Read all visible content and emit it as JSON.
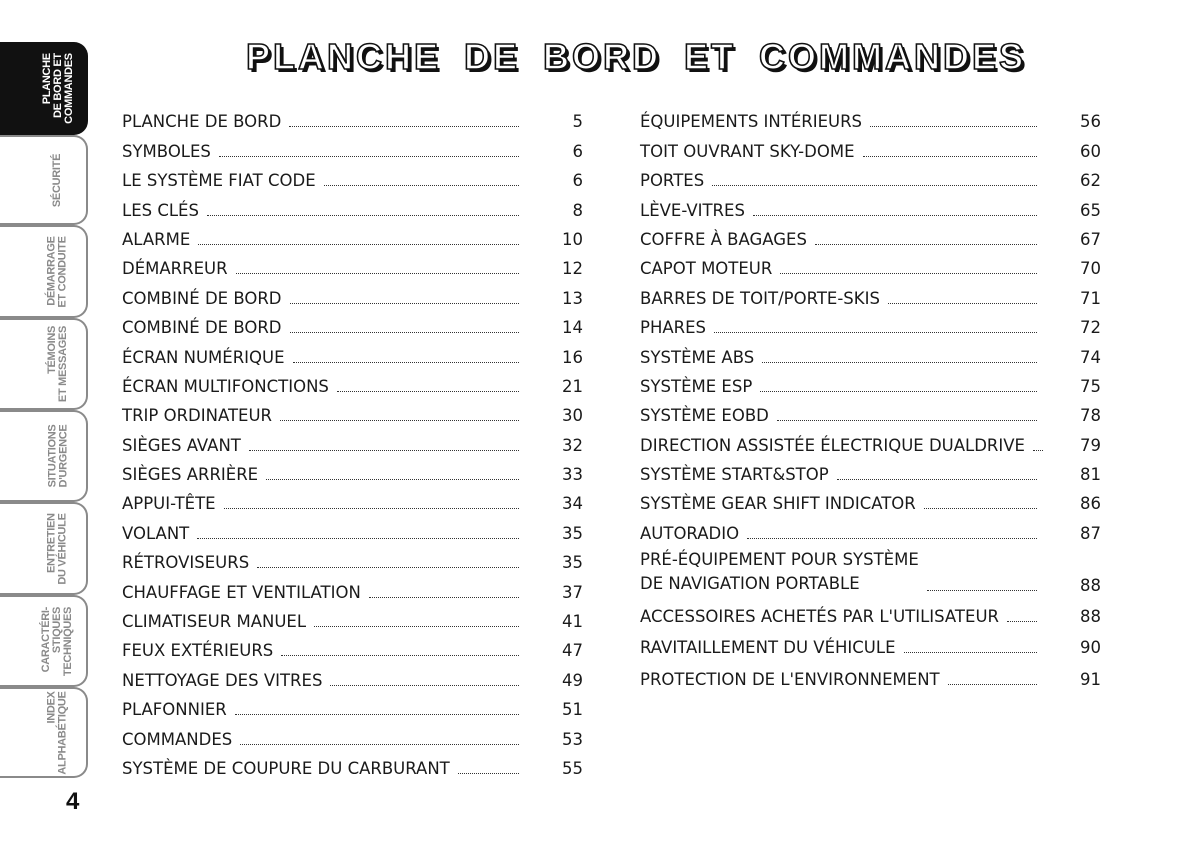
{
  "title": "PLANCHE DE BORD ET COMMANDES",
  "page_number": "4",
  "tabs": [
    {
      "label": "PLANCHE\nDE BORD ET\nCOMMANDES",
      "active": true
    },
    {
      "label": "SÉCURITÉ",
      "active": false
    },
    {
      "label": "DÉMARRAGE\nET CONDUITE",
      "active": false
    },
    {
      "label": "TÉMOINS\nET MESSAGES",
      "active": false
    },
    {
      "label": "SITUATIONS\nD'URGENCE",
      "active": false
    },
    {
      "label": "ENTRETIEN\nDU VÉHICULE",
      "active": false
    },
    {
      "label": "CARACTÉRI-\nSTIQUES\nTECHNIQUES",
      "active": false
    },
    {
      "label": "INDEX\nALPHABÉTIQUE",
      "active": false
    }
  ],
  "toc_left": [
    {
      "label": "PLANCHE DE BORD",
      "page": "5"
    },
    {
      "label": "SYMBOLES",
      "page": "6"
    },
    {
      "label": "LE SYSTÈME FIAT CODE",
      "page": "6"
    },
    {
      "label": "LES CLÉS",
      "page": "8"
    },
    {
      "label": "ALARME",
      "page": "10"
    },
    {
      "label": "DÉMARREUR",
      "page": "12"
    },
    {
      "label": "COMBINÉ DE BORD",
      "page": "13"
    },
    {
      "label": "COMBINÉ DE BORD",
      "page": "14"
    },
    {
      "label": "ÉCRAN NUMÉRIQUE",
      "page": "16"
    },
    {
      "label": "ÉCRAN MULTIFONCTIONS",
      "page": "21"
    },
    {
      "label": "TRIP ORDINATEUR",
      "page": "30"
    },
    {
      "label": "SIÈGES AVANT",
      "page": "32"
    },
    {
      "label": "SIÈGES ARRIÈRE",
      "page": "33"
    },
    {
      "label": "APPUI-TÊTE",
      "page": "34"
    },
    {
      "label": "VOLANT",
      "page": "35"
    },
    {
      "label": "RÉTROVISEURS",
      "page": "35"
    },
    {
      "label": "CHAUFFAGE ET VENTILATION",
      "page": "37"
    },
    {
      "label": "CLIMATISEUR MANUEL",
      "page": "41"
    },
    {
      "label": "FEUX EXTÉRIEURS",
      "page": "47"
    },
    {
      "label": "NETTOYAGE DES VITRES",
      "page": "49"
    },
    {
      "label": "PLAFONNIER",
      "page": "51"
    },
    {
      "label": "COMMANDES",
      "page": "53"
    },
    {
      "label": "SYSTÈME DE COUPURE DU CARBURANT",
      "page": "55"
    }
  ],
  "toc_right": [
    {
      "label": "ÉQUIPEMENTS INTÉRIEURS",
      "page": "56"
    },
    {
      "label": "TOIT OUVRANT SKY-DOME",
      "page": "60"
    },
    {
      "label": "PORTES",
      "page": "62"
    },
    {
      "label": "LÈVE-VITRES",
      "page": "65"
    },
    {
      "label": "COFFRE À BAGAGES",
      "page": "67"
    },
    {
      "label": "CAPOT MOTEUR",
      "page": "70"
    },
    {
      "label": "BARRES DE TOIT/PORTE-SKIS",
      "page": "71"
    },
    {
      "label": "PHARES",
      "page": "72"
    },
    {
      "label": "SYSTÈME ABS",
      "page": "74"
    },
    {
      "label": "SYSTÈME ESP",
      "page": "75"
    },
    {
      "label": "SYSTÈME EOBD",
      "page": "78"
    },
    {
      "label": "DIRECTION ASSISTÉE ÉLECTRIQUE DUALDRIVE",
      "page": "79"
    },
    {
      "label": "SYSTÈME START&STOP",
      "page": "81"
    },
    {
      "label": "SYSTÈME GEAR SHIFT INDICATOR",
      "page": "86"
    },
    {
      "label": "AUTORADIO",
      "page": "87"
    },
    {
      "label": "PRÉ-ÉQUIPEMENT POUR SYSTÈME\nDE NAVIGATION PORTABLE",
      "page": "88"
    },
    {
      "label": "ACCESSOIRES ACHETÉS PAR L'UTILISATEUR",
      "page": "88"
    },
    {
      "label": "RAVITAILLEMENT DU VÉHICULE",
      "page": "90"
    },
    {
      "label": "PROTECTION DE L'ENVIRONNEMENT",
      "page": "91"
    }
  ]
}
